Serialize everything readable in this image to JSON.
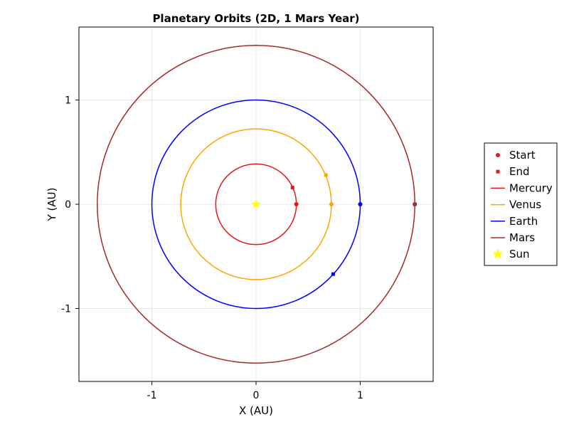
{
  "chart_data": {
    "type": "line",
    "title": "Planetary Orbits (2D, 1 Mars Year)",
    "xlabel": "X (AU)",
    "ylabel": "Y (AU)",
    "xlim": [
      -1.7,
      1.7
    ],
    "ylim": [
      -1.7,
      1.7
    ],
    "xticks": [
      {
        "value": -1,
        "label": "-1"
      },
      {
        "value": 0,
        "label": "0"
      },
      {
        "value": 1,
        "label": "1"
      }
    ],
    "yticks": [
      {
        "value": -1,
        "label": "-1"
      },
      {
        "value": 0,
        "label": "0"
      },
      {
        "value": 1,
        "label": "1"
      }
    ],
    "grid": true,
    "legend_position": "right",
    "series": [
      {
        "name": "Mercury",
        "color": "#e8161a",
        "radius_au": 0.387,
        "start": {
          "x": 0.387,
          "y": 0.0
        },
        "end": {
          "x": 0.35,
          "y": 0.16
        }
      },
      {
        "name": "Venus",
        "color": "#ffa500",
        "radius_au": 0.723,
        "start": {
          "x": 0.723,
          "y": 0.0
        },
        "end": {
          "x": 0.67,
          "y": 0.28
        }
      },
      {
        "name": "Earth",
        "color": "#0000ff",
        "radius_au": 1.0,
        "start": {
          "x": 1.0,
          "y": 0.0
        },
        "end": {
          "x": 0.74,
          "y": -0.67
        }
      },
      {
        "name": "Mars",
        "color": "#a52a2a",
        "radius_au": 1.524,
        "start": {
          "x": 1.524,
          "y": 0.0
        },
        "end": {
          "x": 1.524,
          "y": 0.0
        }
      }
    ],
    "sun": {
      "name": "Sun",
      "color": "#ffff00",
      "x": 0.0,
      "y": 0.0
    },
    "legend": [
      {
        "label": "Start",
        "marker": "circle",
        "color": "#e8161a"
      },
      {
        "label": "End",
        "marker": "square",
        "color": "#e8161a"
      },
      {
        "label": "Mercury",
        "marker": "line",
        "color": "#e8161a"
      },
      {
        "label": "Venus",
        "marker": "line",
        "color": "#ffa500"
      },
      {
        "label": "Earth",
        "marker": "line",
        "color": "#0000ff"
      },
      {
        "label": "Mars",
        "marker": "line",
        "color": "#a52a2a"
      },
      {
        "label": "Sun",
        "marker": "star",
        "color": "#ffff00"
      }
    ]
  }
}
